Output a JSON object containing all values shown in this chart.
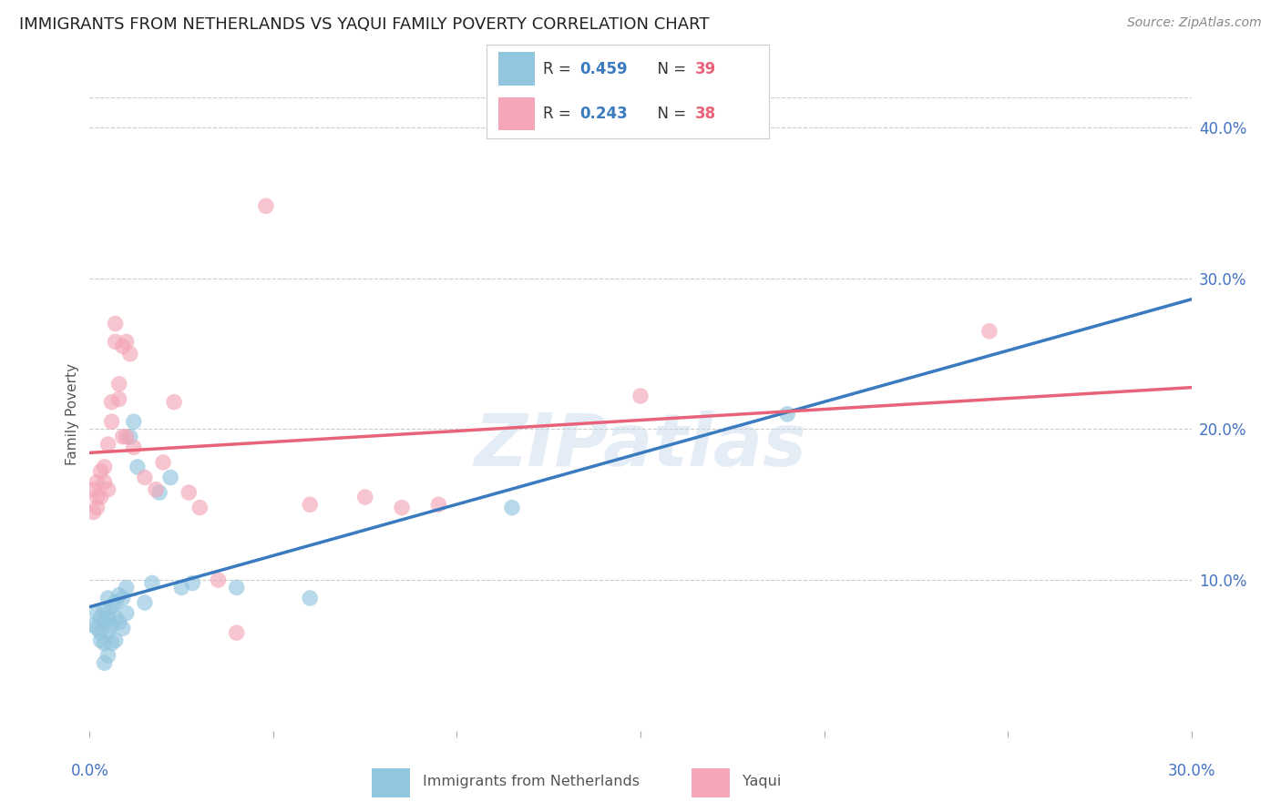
{
  "title": "IMMIGRANTS FROM NETHERLANDS VS YAQUI FAMILY POVERTY CORRELATION CHART",
  "source": "Source: ZipAtlas.com",
  "ylabel": "Family Poverty",
  "xlim": [
    0.0,
    0.3
  ],
  "ylim": [
    0.0,
    0.42
  ],
  "ytick_right_values": [
    0.1,
    0.2,
    0.3,
    0.4
  ],
  "legend_R1": "0.459",
  "legend_N1": "39",
  "legend_R2": "0.243",
  "legend_N2": "38",
  "legend_label1": "Immigrants from Netherlands",
  "legend_label2": "Yaqui",
  "blue_color": "#92c5de",
  "pink_color": "#f4a6b8",
  "blue_line_color": "#3a7bbf",
  "pink_line_color": "#e8637a",
  "dashed_line_color": "#aaaaaa",
  "blue_scatter_x": [
    0.001,
    0.002,
    0.002,
    0.003,
    0.003,
    0.003,
    0.004,
    0.004,
    0.004,
    0.004,
    0.005,
    0.005,
    0.005,
    0.005,
    0.006,
    0.006,
    0.006,
    0.007,
    0.007,
    0.007,
    0.008,
    0.008,
    0.009,
    0.009,
    0.01,
    0.01,
    0.011,
    0.012,
    0.013,
    0.015,
    0.017,
    0.019,
    0.022,
    0.025,
    0.028,
    0.04,
    0.06,
    0.115,
    0.19
  ],
  "blue_scatter_y": [
    0.07,
    0.078,
    0.068,
    0.075,
    0.065,
    0.06,
    0.08,
    0.072,
    0.058,
    0.045,
    0.088,
    0.075,
    0.065,
    0.05,
    0.082,
    0.07,
    0.058,
    0.085,
    0.075,
    0.06,
    0.09,
    0.072,
    0.088,
    0.068,
    0.095,
    0.078,
    0.195,
    0.205,
    0.175,
    0.085,
    0.098,
    0.158,
    0.168,
    0.095,
    0.098,
    0.095,
    0.088,
    0.148,
    0.21
  ],
  "pink_scatter_x": [
    0.001,
    0.001,
    0.002,
    0.002,
    0.002,
    0.003,
    0.003,
    0.004,
    0.004,
    0.005,
    0.005,
    0.006,
    0.006,
    0.007,
    0.007,
    0.008,
    0.008,
    0.009,
    0.009,
    0.01,
    0.01,
    0.011,
    0.012,
    0.015,
    0.018,
    0.02,
    0.023,
    0.027,
    0.03,
    0.035,
    0.04,
    0.048,
    0.06,
    0.075,
    0.085,
    0.095,
    0.15,
    0.245
  ],
  "pink_scatter_y": [
    0.16,
    0.145,
    0.165,
    0.155,
    0.148,
    0.172,
    0.155,
    0.175,
    0.165,
    0.19,
    0.16,
    0.218,
    0.205,
    0.258,
    0.27,
    0.22,
    0.23,
    0.195,
    0.255,
    0.258,
    0.195,
    0.25,
    0.188,
    0.168,
    0.16,
    0.178,
    0.218,
    0.158,
    0.148,
    0.1,
    0.065,
    0.348,
    0.15,
    0.155,
    0.148,
    0.15,
    0.222,
    0.265
  ],
  "watermark_text": "ZIPatlas",
  "grid_color": "#cccccc",
  "background_color": "#ffffff",
  "title_color": "#222222",
  "source_color": "#888888",
  "axis_label_color": "#4472c4",
  "ylabel_color": "#555555"
}
